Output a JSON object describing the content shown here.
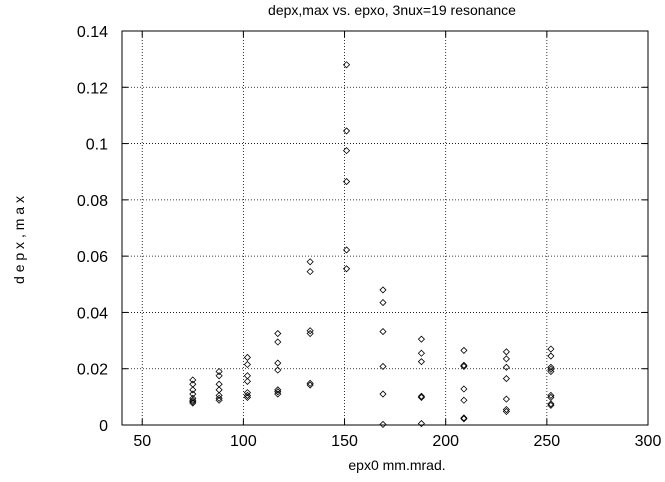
{
  "chart_data": {
    "type": "scatter",
    "title": "depx,max vs.  epxo, 3nux=19 resonance",
    "xlabel": "epx0  mm.mrad.",
    "ylabel": "d e p x , m a x",
    "xlim": [
      40,
      300
    ],
    "ylim": [
      0,
      0.14
    ],
    "xticks": [
      50,
      100,
      150,
      200,
      250,
      300
    ],
    "xtick_labels": [
      "50",
      "100",
      "150",
      "200",
      "250",
      "300"
    ],
    "yticks": [
      0,
      0.02,
      0.04,
      0.06,
      0.08,
      0.1,
      0.12,
      0.14
    ],
    "ytick_labels": [
      "0",
      "0.02",
      "0.04",
      "0.06",
      "0.08",
      "0.1",
      "0.12",
      "0.14"
    ],
    "grid": true,
    "marker": "diamond",
    "series": [
      {
        "x": [
          75,
          75,
          75,
          75,
          75,
          75,
          75,
          75,
          88,
          88,
          88,
          88,
          88,
          88,
          88,
          102,
          102,
          102,
          102,
          102,
          102,
          102,
          117,
          117,
          117,
          117,
          117,
          117,
          117,
          133,
          133,
          133,
          133,
          133,
          133,
          151,
          151,
          151,
          151,
          151,
          151,
          169,
          169,
          169,
          169,
          169,
          169,
          188,
          188,
          188,
          188,
          188,
          188,
          209,
          209,
          209,
          209,
          209,
          209,
          209,
          230,
          230,
          230,
          230,
          230,
          230,
          230,
          252,
          252,
          252,
          252,
          252,
          252,
          252,
          252,
          252
        ],
        "y": [
          0.016,
          0.0145,
          0.0125,
          0.011,
          0.0095,
          0.0088,
          0.0083,
          0.0078,
          0.019,
          0.0175,
          0.0145,
          0.0125,
          0.0105,
          0.0095,
          0.0088,
          0.024,
          0.0215,
          0.0175,
          0.0155,
          0.0115,
          0.0105,
          0.0098,
          0.0325,
          0.0295,
          0.022,
          0.0195,
          0.0125,
          0.0118,
          0.011,
          0.058,
          0.0545,
          0.0335,
          0.0325,
          0.0148,
          0.0142,
          0.128,
          0.1045,
          0.0975,
          0.0865,
          0.0622,
          0.0555,
          0.048,
          0.0435,
          0.0332,
          0.0208,
          0.011,
          0.0002,
          0.0305,
          0.0255,
          0.0225,
          0.0102,
          0.0098,
          0.0005,
          0.0265,
          0.0212,
          0.0208,
          0.0128,
          0.0088,
          0.0025,
          0.0022,
          0.026,
          0.0235,
          0.0205,
          0.0165,
          0.0092,
          0.0055,
          0.0048,
          0.027,
          0.0245,
          0.0205,
          0.0198,
          0.019,
          0.0105,
          0.0098,
          0.0075,
          0.007
        ]
      }
    ]
  }
}
